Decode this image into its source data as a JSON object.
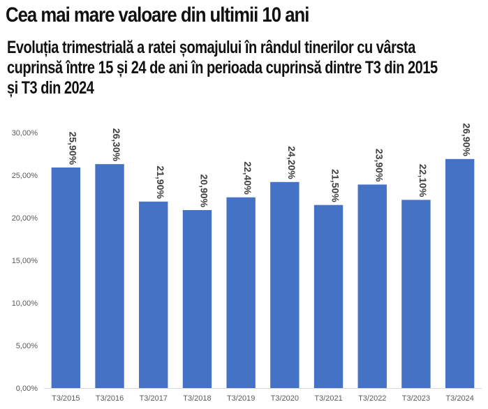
{
  "chart_data": {
    "type": "bar",
    "title": "Cea mai mare valoare din ultimii 10 ani",
    "subtitle": "Evoluția trimestrială a ratei șomajului în rândul tinerilor cu vârsta cuprinsă între 15 și 24 de ani în perioada cuprinsă dintre T3 din 2015 și T3 din 2024",
    "categories": [
      "T3/2015",
      "T3/2016",
      "T3/2017",
      "T3/2018",
      "T3/2019",
      "T3/2020",
      "T3/2021",
      "T3/2022",
      "T3/2023",
      "T3/2024"
    ],
    "values": [
      25.9,
      26.3,
      21.9,
      20.9,
      22.4,
      24.2,
      21.5,
      23.9,
      22.1,
      26.9
    ],
    "data_labels": [
      "25,90%",
      "26,30%",
      "21,90%",
      "20,90%",
      "22,40%",
      "24,20%",
      "21,50%",
      "23,90%",
      "22,10%",
      "26,90%"
    ],
    "y_ticks": [
      0,
      5,
      10,
      15,
      20,
      25,
      30
    ],
    "y_tick_labels": [
      "0,00%",
      "5,00%",
      "10,00%",
      "15,00%",
      "20,00%",
      "25,00%",
      "30,00%"
    ],
    "ylim": [
      0,
      30
    ],
    "xlabel": "",
    "ylabel": "",
    "grid": false,
    "bar_color": "#4472C4"
  }
}
